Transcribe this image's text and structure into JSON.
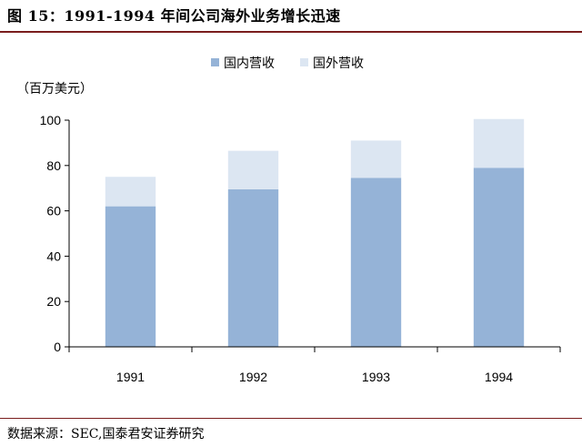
{
  "figure": {
    "title": "图 15：1991-1994 年间公司海外业务增长迅速",
    "source": "数据来源：SEC,国泰君安证券研究"
  },
  "chart_data": {
    "type": "bar",
    "stacked": true,
    "categories": [
      "1991",
      "1992",
      "1993",
      "1994"
    ],
    "series": [
      {
        "name": "国内营收",
        "values": [
          62,
          69.5,
          74.5,
          79
        ],
        "color": "#95b3d7"
      },
      {
        "name": "国外营收",
        "values": [
          13,
          17,
          16.5,
          21.5
        ],
        "color": "#dce6f2"
      }
    ],
    "ylabel": "（百万美元）",
    "ylim": [
      0,
      100
    ],
    "yticks": [
      0,
      20,
      40,
      60,
      80,
      100
    ],
    "grid": false,
    "legend": "top-center"
  }
}
